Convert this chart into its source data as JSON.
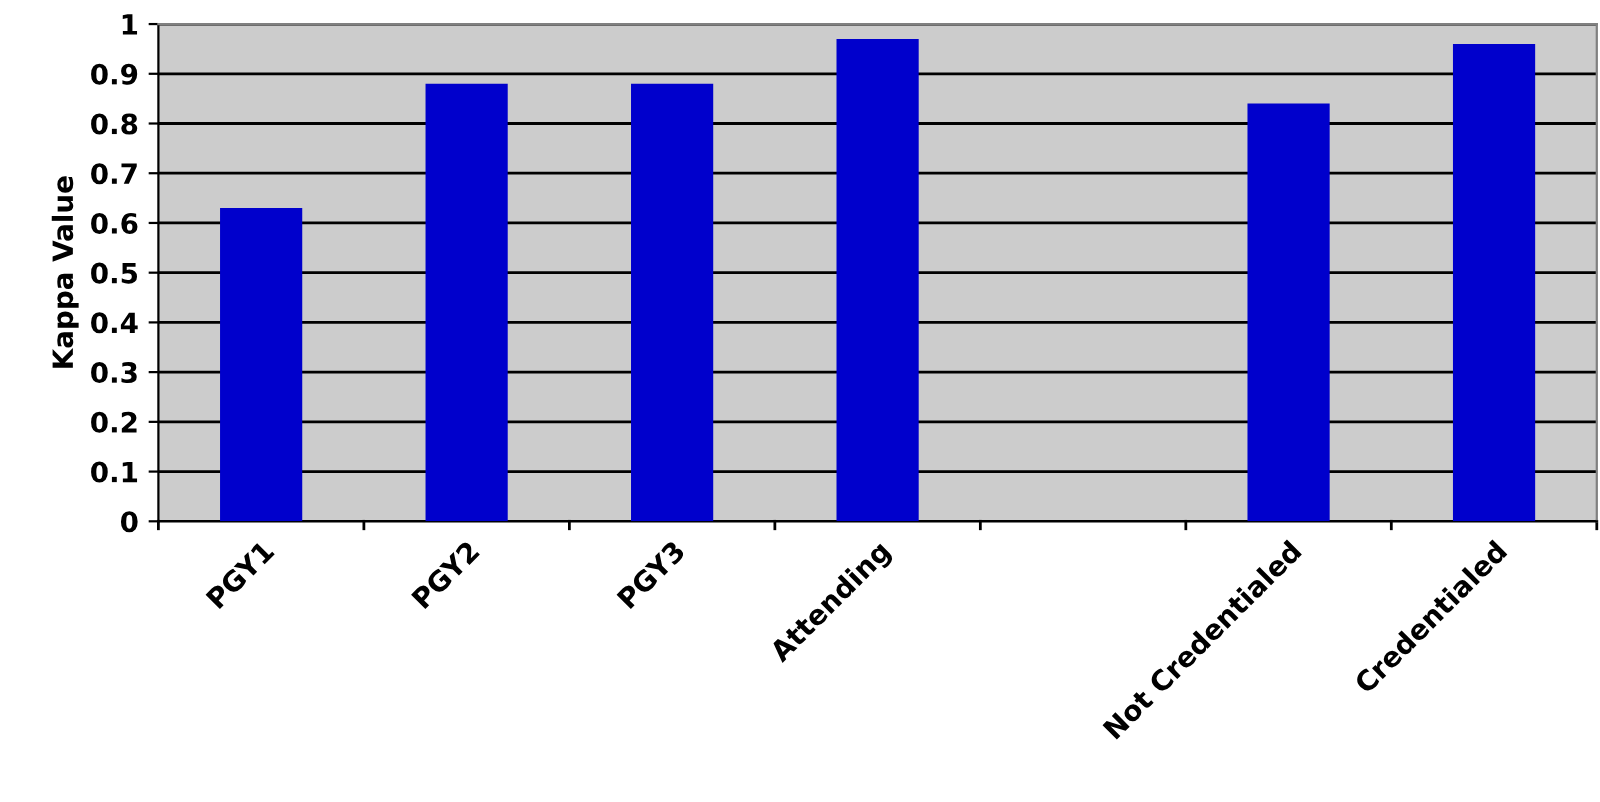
{
  "chart_data": {
    "type": "bar",
    "ylabel": "Kappa Value",
    "categories": [
      "PGY1",
      "PGY2",
      "PGY3",
      "Attending",
      null,
      "Not Credentialed",
      "Credentialed"
    ],
    "values": [
      0.63,
      0.88,
      0.88,
      0.97,
      null,
      0.84,
      0.96
    ],
    "color": "#0000cc",
    "ylim": [
      0,
      1
    ],
    "yticks": [
      0,
      0.1,
      0.2,
      0.3,
      0.4,
      0.5,
      0.6,
      0.7,
      0.8,
      0.9,
      1
    ],
    "grid": "y"
  }
}
